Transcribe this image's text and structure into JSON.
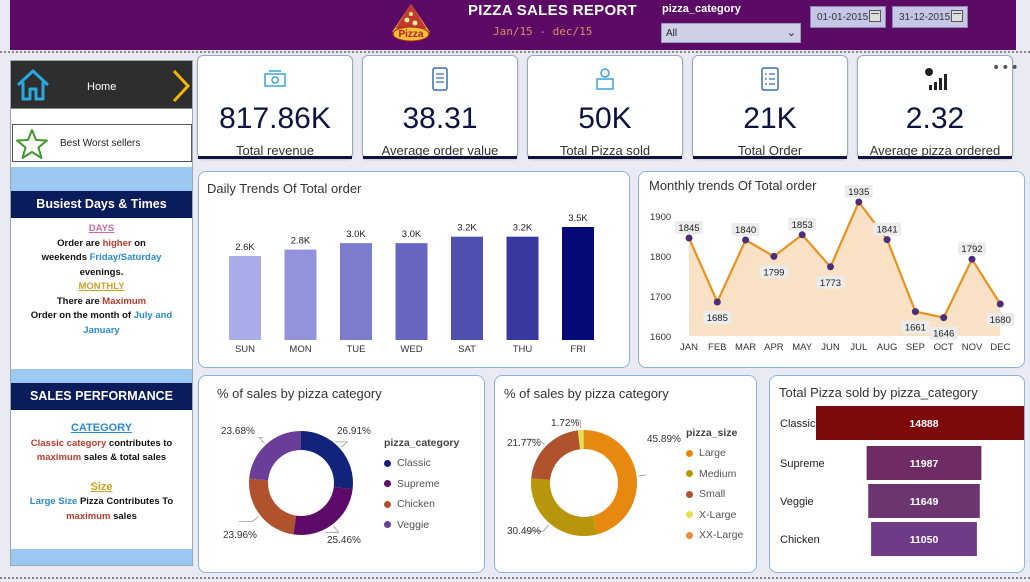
{
  "header": {
    "title": "PIZZA SALES REPORT",
    "subtitle": "Jan/15 - dec/15",
    "logo_text": "Pizza",
    "slicer_label": "pizza_category",
    "slicer_value": "All",
    "date_start": "01-01-2015",
    "date_end": "31-12-2015"
  },
  "nav": {
    "home_label": "Home",
    "best_label": "Best Worst sellers"
  },
  "busiest": {
    "heading": "Busiest Days & Times",
    "days_title": "DAYS",
    "line1a": "Order are ",
    "line1b": "higher",
    "line1c": " on",
    "line2a": "weekends ",
    "line2b": "Friday/Saturday",
    "line3": "evenings.",
    "monthly_title": "MONTHLY",
    "line4a": "There are ",
    "line4b": "Maximum",
    "line5a": "Order on the month of ",
    "line5b": "July and",
    "line6": "January"
  },
  "sales_perf": {
    "heading": "SALES PERFORMANCE",
    "category_title": "CATEGORY",
    "l1a": "Classic category",
    "l1b": " contributes  to",
    "l2a": "maximum",
    "l2b": " sales & total sales",
    "size_title": "Size",
    "l3a": "Large Size ",
    "l3b": "Pizza Contributes To",
    "l4": "maximum",
    "l4b": " sales"
  },
  "kpis": [
    {
      "value": "817.86K",
      "label": "Total revenue",
      "icon": "money-icon"
    },
    {
      "value": "38.31",
      "label": "Average order value",
      "icon": "receipt-icon"
    },
    {
      "value": "50K",
      "label": "Total Pizza sold",
      "icon": "delivery-icon"
    },
    {
      "value": "21K",
      "label": "Total Order",
      "icon": "order-list-icon"
    },
    {
      "value": "2.32",
      "label": "Average pizza ordered",
      "icon": "growth-chart-icon"
    }
  ],
  "more_label": "•••",
  "colors": {
    "header": "#5b0a66",
    "navy": "#0b1c5c",
    "line": "#e8921e",
    "area": "#f8e1c4",
    "marker": "#4b2d7a"
  },
  "chart_data": [
    {
      "type": "bar",
      "title": "Daily Trends Of Total order",
      "categories": [
        "SUN",
        "MON",
        "TUE",
        "WED",
        "SAT",
        "THU",
        "FRI"
      ],
      "values": [
        2.6,
        2.8,
        3.0,
        3.0,
        3.2,
        3.2,
        3.5
      ],
      "data_labels": [
        "2.6K",
        "2.8K",
        "3.0K",
        "3.0K",
        "3.2K",
        "3.2K",
        "3.5K"
      ],
      "colors": [
        "#aaabe9",
        "#9393dc",
        "#7c7ccd",
        "#6666c0",
        "#4f4fb0",
        "#3838a0",
        "#050a78"
      ],
      "ylim": [
        0,
        3.5
      ]
    },
    {
      "type": "area",
      "title": "Monthly trends Of Total order",
      "categories": [
        "JAN",
        "FEB",
        "MAR",
        "APR",
        "MAY",
        "JUN",
        "JUL",
        "AUG",
        "SEP",
        "OCT",
        "NOV",
        "DEC"
      ],
      "values": [
        1845,
        1685,
        1840,
        1799,
        1853,
        1773,
        1935,
        1841,
        1661,
        1646,
        1792,
        1680
      ],
      "yticks": [
        1600,
        1700,
        1800,
        1900
      ],
      "ylim": [
        1600,
        1940
      ]
    },
    {
      "type": "pie",
      "title": "% of sales by pizza category",
      "legend_title": "pizza_category",
      "labels": [
        "Classic",
        "Supreme",
        "Chicken",
        "Veggie"
      ],
      "values": [
        26.91,
        25.46,
        23.96,
        23.68
      ],
      "value_labels": [
        "26.91%",
        "25.46%",
        "23.96%",
        "23.68%"
      ],
      "colors": [
        "#12237a",
        "#5e0a6a",
        "#b0522c",
        "#6a3e98"
      ]
    },
    {
      "type": "pie",
      "title": "% of sales by pizza category",
      "legend_title": "pizza_size",
      "labels": [
        "Large",
        "Medium",
        "Small",
        "X-Large",
        "XX-Large"
      ],
      "values": [
        45.89,
        30.49,
        21.77,
        1.72,
        0.12
      ],
      "value_labels": [
        "45.89%",
        "30.49%",
        "21.77%",
        "1.72%",
        ""
      ],
      "colors": [
        "#e8890f",
        "#b8960c",
        "#b0522c",
        "#e3e04a",
        "#ea8a3a"
      ]
    },
    {
      "type": "bar",
      "title": "Total Pizza sold by pizza_category",
      "categories": [
        "Classic",
        "Supreme",
        "Veggie",
        "Chicken"
      ],
      "values": [
        14888,
        11987,
        11649,
        11050
      ],
      "data_labels": [
        "14888",
        "11987",
        "11649",
        "11050"
      ],
      "colors": [
        "#7e0a0c",
        "#6f2b63",
        "#6d3570",
        "#6f3a86"
      ],
      "xlim": [
        0,
        14888
      ]
    }
  ]
}
